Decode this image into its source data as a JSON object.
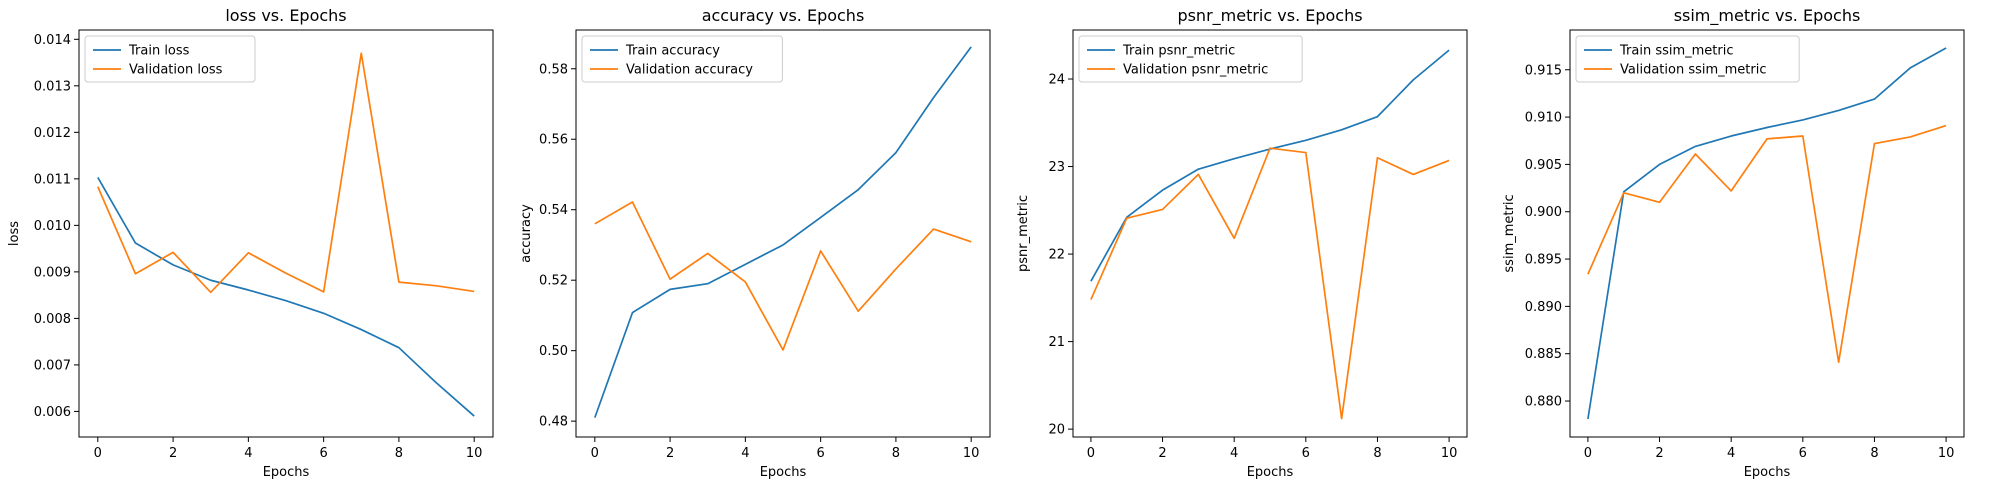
{
  "colors": {
    "train": "#1f77b4",
    "validation": "#ff7f0e"
  },
  "chart_data": [
    {
      "type": "line",
      "title": "loss vs. Epochs",
      "xlabel": "Epochs",
      "ylabel": "loss",
      "x": [
        0,
        1,
        2,
        3,
        4,
        5,
        6,
        7,
        8,
        9,
        10
      ],
      "xlim": [
        -0.5,
        10.5
      ],
      "ylim": [
        0.00545,
        0.0142
      ],
      "xticks": [
        0,
        2,
        4,
        6,
        8,
        10
      ],
      "yticks": [
        0.006,
        0.007,
        0.008,
        0.009,
        0.01,
        0.011,
        0.012,
        0.013,
        0.014
      ],
      "ytick_labels": [
        "0.006",
        "0.007",
        "0.008",
        "0.009",
        "0.010",
        "0.011",
        "0.012",
        "0.013",
        "0.014"
      ],
      "legend": "upper-left",
      "series": [
        {
          "name": "Train loss",
          "values": [
            0.01103,
            0.00962,
            0.00915,
            0.00882,
            0.00861,
            0.00838,
            0.00811,
            0.00776,
            0.00737,
            0.00661,
            0.0059
          ]
        },
        {
          "name": "Validation loss",
          "values": [
            0.01083,
            0.00896,
            0.00942,
            0.00856,
            0.00941,
            0.00897,
            0.00857,
            0.0137,
            0.00878,
            0.0087,
            0.00858
          ]
        }
      ]
    },
    {
      "type": "line",
      "title": "accuracy vs. Epochs",
      "xlabel": "Epochs",
      "ylabel": "accuracy",
      "x": [
        0,
        1,
        2,
        3,
        4,
        5,
        6,
        7,
        8,
        9,
        10
      ],
      "xlim": [
        -0.5,
        10.5
      ],
      "ylim": [
        0.4755,
        0.591
      ],
      "xticks": [
        0,
        2,
        4,
        6,
        8,
        10
      ],
      "yticks": [
        0.48,
        0.5,
        0.52,
        0.54,
        0.56,
        0.58
      ],
      "ytick_labels": [
        "0.48",
        "0.50",
        "0.52",
        "0.54",
        "0.56",
        "0.58"
      ],
      "legend": "upper-left",
      "series": [
        {
          "name": "Train accuracy",
          "values": [
            0.481,
            0.5108,
            0.5174,
            0.519,
            0.5245,
            0.53,
            0.5378,
            0.5457,
            0.5562,
            0.5718,
            0.5862
          ]
        },
        {
          "name": "Validation accuracy",
          "values": [
            0.536,
            0.5422,
            0.5203,
            0.5276,
            0.5195,
            0.5002,
            0.5283,
            0.5112,
            0.5232,
            0.5345,
            0.5309
          ]
        }
      ]
    },
    {
      "type": "line",
      "title": "psnr_metric vs. Epochs",
      "xlabel": "Epochs",
      "ylabel": "psnr_metric",
      "x": [
        0,
        1,
        2,
        3,
        4,
        5,
        6,
        7,
        8,
        9,
        10
      ],
      "xlim": [
        -0.5,
        10.5
      ],
      "ylim": [
        19.91,
        24.56
      ],
      "xticks": [
        0,
        2,
        4,
        6,
        8,
        10
      ],
      "yticks": [
        20,
        21,
        22,
        23,
        24
      ],
      "ytick_labels": [
        "20",
        "21",
        "22",
        "23",
        "24"
      ],
      "legend": "upper-left",
      "series": [
        {
          "name": "Train psnr_metric",
          "values": [
            21.69,
            22.42,
            22.73,
            22.97,
            23.09,
            23.2,
            23.3,
            23.42,
            23.57,
            23.99,
            24.33
          ]
        },
        {
          "name": "Validation psnr_metric",
          "values": [
            21.48,
            22.41,
            22.51,
            22.91,
            22.18,
            23.21,
            23.16,
            20.12,
            23.1,
            22.91,
            23.07
          ]
        }
      ]
    },
    {
      "type": "line",
      "title": "ssim_metric vs. Epochs",
      "xlabel": "Epochs",
      "ylabel": "ssim_metric",
      "x": [
        0,
        1,
        2,
        3,
        4,
        5,
        6,
        7,
        8,
        9,
        10
      ],
      "xlim": [
        -0.5,
        10.5
      ],
      "ylim": [
        0.8762,
        0.9192
      ],
      "xticks": [
        0,
        2,
        4,
        6,
        8,
        10
      ],
      "yticks": [
        0.88,
        0.885,
        0.89,
        0.895,
        0.9,
        0.905,
        0.91,
        0.915
      ],
      "ytick_labels": [
        "0.880",
        "0.885",
        "0.890",
        "0.895",
        "0.900",
        "0.905",
        "0.910",
        "0.915"
      ],
      "legend": "upper-left",
      "series": [
        {
          "name": "Train ssim_metric",
          "values": [
            0.8781,
            0.9021,
            0.905,
            0.9069,
            0.908,
            0.9089,
            0.9097,
            0.9107,
            0.9119,
            0.9152,
            0.9173
          ]
        },
        {
          "name": "Validation ssim_metric",
          "values": [
            0.8934,
            0.902,
            0.901,
            0.9061,
            0.9022,
            0.9077,
            0.908,
            0.8841,
            0.9072,
            0.9079,
            0.9091
          ]
        }
      ]
    }
  ]
}
